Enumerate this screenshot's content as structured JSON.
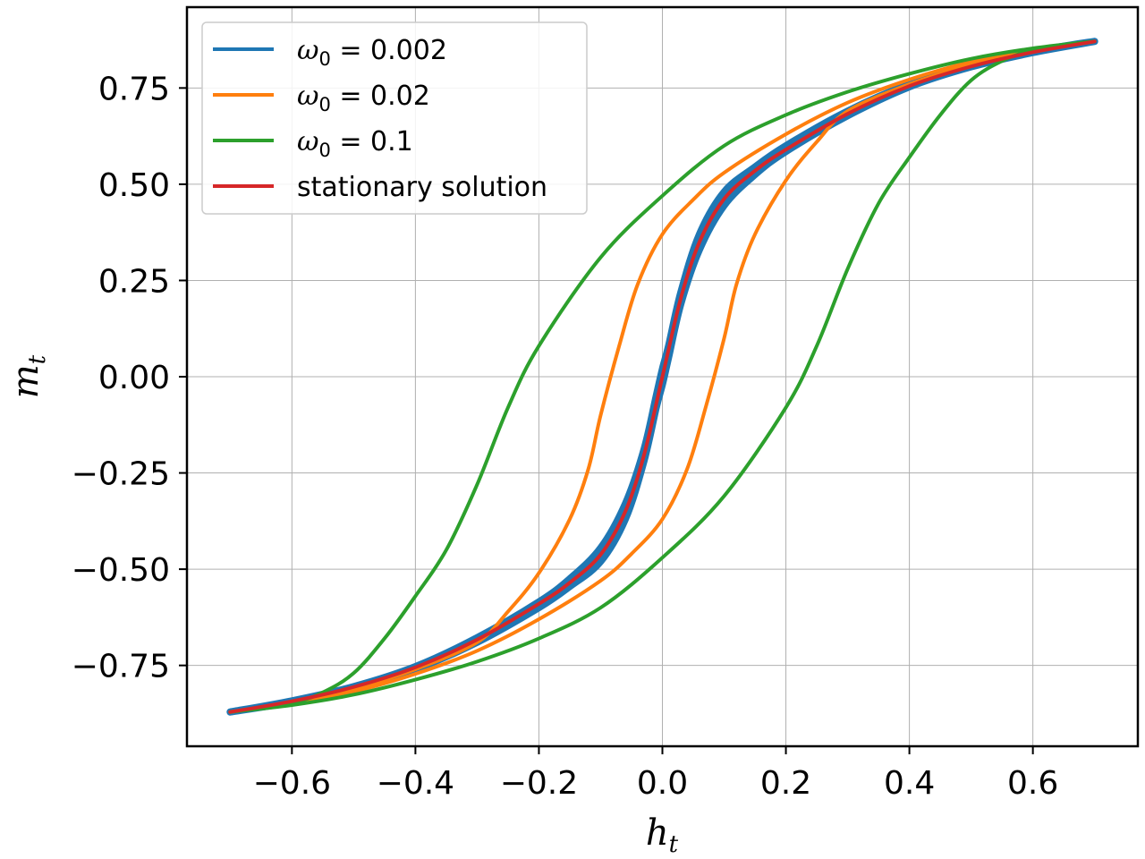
{
  "chart_data": {
    "type": "line",
    "title": "",
    "xlabel": {
      "base": "h",
      "sub": "t"
    },
    "ylabel": {
      "base": "m",
      "sub": "t"
    },
    "xlim": [
      -0.77,
      0.77
    ],
    "ylim": [
      -0.96,
      0.96
    ],
    "grid": true,
    "legend_position": "top-left",
    "x_ticks": [
      {
        "value": -0.6,
        "label": "−0.6"
      },
      {
        "value": -0.4,
        "label": "−0.4"
      },
      {
        "value": -0.2,
        "label": "−0.2"
      },
      {
        "value": 0.0,
        "label": "0.0"
      },
      {
        "value": 0.2,
        "label": "0.2"
      },
      {
        "value": 0.4,
        "label": "0.4"
      },
      {
        "value": 0.6,
        "label": "0.6"
      }
    ],
    "y_ticks": [
      {
        "value": -0.75,
        "label": "−0.75"
      },
      {
        "value": -0.5,
        "label": "−0.50"
      },
      {
        "value": -0.25,
        "label": "−0.25"
      },
      {
        "value": 0.0,
        "label": "0.00"
      },
      {
        "value": 0.25,
        "label": "0.25"
      },
      {
        "value": 0.5,
        "label": "0.50"
      },
      {
        "value": 0.75,
        "label": "0.75"
      }
    ],
    "series": [
      {
        "name": "ω0 = 0.002",
        "legend": {
          "symbol": "ω",
          "sub": "0",
          "rest": " = 0.002"
        },
        "color": "#1f77b4",
        "points": [
          [
            -0.7,
            -0.871
          ],
          [
            -0.6,
            -0.842
          ],
          [
            -0.5,
            -0.805
          ],
          [
            -0.4,
            -0.753
          ],
          [
            -0.3,
            -0.678
          ],
          [
            -0.2,
            -0.585
          ],
          [
            -0.15,
            -0.525
          ],
          [
            -0.1,
            -0.445
          ],
          [
            -0.06,
            -0.33
          ],
          [
            -0.03,
            -0.19
          ],
          [
            -0.01,
            -0.05
          ],
          [
            0.0,
            0.02
          ],
          [
            0.01,
            0.08
          ],
          [
            0.03,
            0.22
          ],
          [
            0.06,
            0.37
          ],
          [
            0.1,
            0.48
          ],
          [
            0.15,
            0.545
          ],
          [
            0.2,
            0.6
          ],
          [
            0.3,
            0.69
          ],
          [
            0.4,
            0.76
          ],
          [
            0.5,
            0.81
          ],
          [
            0.6,
            0.845
          ],
          [
            0.7,
            0.871
          ],
          [
            0.6,
            0.842
          ],
          [
            0.5,
            0.805
          ],
          [
            0.4,
            0.753
          ],
          [
            0.3,
            0.678
          ],
          [
            0.2,
            0.585
          ],
          [
            0.15,
            0.525
          ],
          [
            0.1,
            0.445
          ],
          [
            0.06,
            0.33
          ],
          [
            0.03,
            0.19
          ],
          [
            0.01,
            0.05
          ],
          [
            0.0,
            -0.02
          ],
          [
            -0.01,
            -0.08
          ],
          [
            -0.03,
            -0.22
          ],
          [
            -0.06,
            -0.37
          ],
          [
            -0.1,
            -0.48
          ],
          [
            -0.15,
            -0.545
          ],
          [
            -0.2,
            -0.6
          ],
          [
            -0.3,
            -0.69
          ],
          [
            -0.4,
            -0.76
          ],
          [
            -0.5,
            -0.81
          ],
          [
            -0.6,
            -0.845
          ],
          [
            -0.7,
            -0.871
          ]
        ]
      },
      {
        "name": "ω0 = 0.02",
        "legend": {
          "symbol": "ω",
          "sub": "0",
          "rest": " = 0.02"
        },
        "color": "#ff7f0e",
        "points": [
          [
            -0.7,
            -0.871
          ],
          [
            -0.6,
            -0.849
          ],
          [
            -0.5,
            -0.818
          ],
          [
            -0.4,
            -0.772
          ],
          [
            -0.3,
            -0.712
          ],
          [
            -0.2,
            -0.63
          ],
          [
            -0.1,
            -0.53
          ],
          [
            -0.05,
            -0.46
          ],
          [
            0.0,
            -0.37
          ],
          [
            0.04,
            -0.24
          ],
          [
            0.07,
            -0.08
          ],
          [
            0.1,
            0.1
          ],
          [
            0.12,
            0.24
          ],
          [
            0.15,
            0.37
          ],
          [
            0.2,
            0.51
          ],
          [
            0.25,
            0.61
          ],
          [
            0.3,
            0.69
          ],
          [
            0.4,
            0.76
          ],
          [
            0.5,
            0.81
          ],
          [
            0.6,
            0.846
          ],
          [
            0.7,
            0.871
          ],
          [
            0.6,
            0.849
          ],
          [
            0.5,
            0.818
          ],
          [
            0.4,
            0.772
          ],
          [
            0.3,
            0.712
          ],
          [
            0.2,
            0.63
          ],
          [
            0.1,
            0.53
          ],
          [
            0.05,
            0.46
          ],
          [
            0.0,
            0.37
          ],
          [
            -0.04,
            0.24
          ],
          [
            -0.07,
            0.08
          ],
          [
            -0.1,
            -0.1
          ],
          [
            -0.12,
            -0.24
          ],
          [
            -0.15,
            -0.37
          ],
          [
            -0.2,
            -0.51
          ],
          [
            -0.25,
            -0.61
          ],
          [
            -0.3,
            -0.69
          ],
          [
            -0.4,
            -0.76
          ],
          [
            -0.5,
            -0.81
          ],
          [
            -0.6,
            -0.846
          ],
          [
            -0.7,
            -0.871
          ]
        ]
      },
      {
        "name": "ω0 = 0.1",
        "legend": {
          "symbol": "ω",
          "sub": "0",
          "rest": " = 0.1"
        },
        "color": "#2ca02c",
        "points": [
          [
            -0.7,
            -0.871
          ],
          [
            -0.6,
            -0.853
          ],
          [
            -0.5,
            -0.826
          ],
          [
            -0.4,
            -0.787
          ],
          [
            -0.3,
            -0.74
          ],
          [
            -0.2,
            -0.68
          ],
          [
            -0.1,
            -0.6
          ],
          [
            0.0,
            -0.47
          ],
          [
            0.1,
            -0.31
          ],
          [
            0.2,
            -0.08
          ],
          [
            0.25,
            0.08
          ],
          [
            0.3,
            0.28
          ],
          [
            0.35,
            0.45
          ],
          [
            0.4,
            0.57
          ],
          [
            0.45,
            0.68
          ],
          [
            0.5,
            0.77
          ],
          [
            0.55,
            0.82
          ],
          [
            0.6,
            0.847
          ],
          [
            0.7,
            0.871
          ],
          [
            0.6,
            0.853
          ],
          [
            0.5,
            0.826
          ],
          [
            0.4,
            0.787
          ],
          [
            0.3,
            0.74
          ],
          [
            0.2,
            0.68
          ],
          [
            0.1,
            0.6
          ],
          [
            0.0,
            0.47
          ],
          [
            -0.1,
            0.31
          ],
          [
            -0.2,
            0.08
          ],
          [
            -0.25,
            -0.08
          ],
          [
            -0.3,
            -0.28
          ],
          [
            -0.35,
            -0.45
          ],
          [
            -0.4,
            -0.57
          ],
          [
            -0.45,
            -0.68
          ],
          [
            -0.5,
            -0.77
          ],
          [
            -0.55,
            -0.82
          ],
          [
            -0.6,
            -0.847
          ],
          [
            -0.7,
            -0.871
          ]
        ]
      },
      {
        "name": "stationary solution",
        "legend": {
          "symbol": "",
          "sub": "",
          "rest": "stationary solution"
        },
        "color": "#d62728",
        "points": [
          [
            -0.7,
            -0.871
          ],
          [
            -0.6,
            -0.843
          ],
          [
            -0.5,
            -0.806
          ],
          [
            -0.4,
            -0.755
          ],
          [
            -0.3,
            -0.683
          ],
          [
            -0.2,
            -0.59
          ],
          [
            -0.15,
            -0.535
          ],
          [
            -0.1,
            -0.462
          ],
          [
            -0.06,
            -0.35
          ],
          [
            -0.03,
            -0.205
          ],
          [
            0.0,
            0.0
          ],
          [
            0.03,
            0.205
          ],
          [
            0.06,
            0.35
          ],
          [
            0.1,
            0.462
          ],
          [
            0.15,
            0.535
          ],
          [
            0.2,
            0.59
          ],
          [
            0.3,
            0.683
          ],
          [
            0.4,
            0.755
          ],
          [
            0.5,
            0.806
          ],
          [
            0.6,
            0.843
          ],
          [
            0.7,
            0.871
          ]
        ]
      }
    ]
  }
}
